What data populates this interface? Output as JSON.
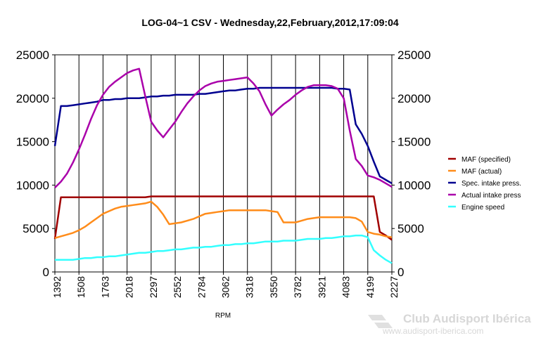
{
  "chart_data": {
    "type": "line",
    "title": "LOG-04~1 CSV - Wednesday,22,February,2012,17:09:04",
    "xlabel": "RPM",
    "ylabel": "",
    "ylim": [
      0,
      25000
    ],
    "y_ticks": [
      0,
      5000,
      10000,
      15000,
      20000,
      25000
    ],
    "grid": "vertical",
    "legend_position": "right",
    "categories": [
      "1392",
      "1508",
      "1763",
      "2018",
      "2297",
      "2552",
      "2784",
      "3062",
      "3318",
      "3550",
      "3782",
      "3921",
      "4083",
      "4199",
      "2227"
    ],
    "x": [
      0,
      0.25,
      0.5,
      0.75,
      1,
      1.25,
      1.5,
      1.75,
      2,
      2.25,
      2.5,
      2.75,
      3,
      3.25,
      3.5,
      3.75,
      4,
      4.25,
      4.5,
      4.75,
      5,
      5.25,
      5.5,
      5.75,
      6,
      6.25,
      6.5,
      6.75,
      7,
      7.25,
      7.5,
      7.75,
      8,
      8.25,
      8.5,
      8.75,
      9,
      9.25,
      9.5,
      9.75,
      10,
      10.25,
      10.5,
      10.75,
      11,
      11.25,
      11.5,
      11.75,
      12,
      12.25,
      12.5,
      12.75,
      13,
      13.25,
      13.5,
      13.75,
      14
    ],
    "series": [
      {
        "name": "MAF (specified)",
        "color": "#a00000",
        "values": [
          3800,
          8600,
          8600,
          8600,
          8600,
          8600,
          8600,
          8600,
          8600,
          8600,
          8600,
          8600,
          8600,
          8600,
          8600,
          8600,
          8700,
          8700,
          8700,
          8700,
          8700,
          8700,
          8700,
          8700,
          8700,
          8700,
          8700,
          8700,
          8700,
          8700,
          8700,
          8700,
          8700,
          8700,
          8700,
          8700,
          8700,
          8700,
          8700,
          8700,
          8700,
          8700,
          8700,
          8700,
          8700,
          8700,
          8700,
          8700,
          8700,
          8700,
          8700,
          8700,
          8700,
          8700,
          4600,
          4200,
          3700
        ]
      },
      {
        "name": "MAF (actual)",
        "color": "#ff8c1a",
        "values": [
          3900,
          4100,
          4300,
          4500,
          4800,
          5200,
          5700,
          6200,
          6700,
          7000,
          7300,
          7500,
          7600,
          7700,
          7800,
          7900,
          8100,
          7500,
          6600,
          5500,
          5600,
          5700,
          5900,
          6100,
          6400,
          6700,
          6800,
          6900,
          7000,
          7100,
          7100,
          7100,
          7100,
          7100,
          7100,
          7100,
          7000,
          6900,
          5700,
          5700,
          5700,
          5900,
          6100,
          6200,
          6300,
          6300,
          6300,
          6300,
          6300,
          6300,
          6200,
          5800,
          4600,
          4400,
          4300,
          4100,
          4000
        ]
      },
      {
        "name": "Spec. intake press.",
        "color": "#000090",
        "values": [
          14500,
          19100,
          19100,
          19200,
          19300,
          19400,
          19500,
          19600,
          19800,
          19800,
          19900,
          19900,
          20000,
          20000,
          20000,
          20100,
          20200,
          20200,
          20300,
          20300,
          20400,
          20400,
          20400,
          20400,
          20500,
          20500,
          20600,
          20700,
          20800,
          20900,
          20900,
          21000,
          21100,
          21100,
          21200,
          21200,
          21200,
          21200,
          21200,
          21200,
          21200,
          21200,
          21200,
          21200,
          21200,
          21200,
          21200,
          21100,
          21100,
          21000,
          17000,
          15900,
          14500,
          12700,
          11000,
          10600,
          10200
        ]
      },
      {
        "name": "Actual intake press",
        "color": "#aa00aa",
        "values": [
          9700,
          10400,
          11300,
          12600,
          14100,
          15800,
          17600,
          19200,
          20400,
          21300,
          21900,
          22400,
          22900,
          23200,
          23400,
          20300,
          17300,
          16300,
          15500,
          16400,
          17300,
          18400,
          19400,
          20200,
          20900,
          21400,
          21700,
          21900,
          22000,
          22100,
          22200,
          22300,
          22400,
          21700,
          20800,
          19300,
          18000,
          18700,
          19300,
          19800,
          20400,
          20900,
          21300,
          21500,
          21500,
          21500,
          21400,
          21100,
          20000,
          16300,
          13000,
          12200,
          11100,
          10900,
          10600,
          10200,
          9800
        ]
      },
      {
        "name": "Engine speed",
        "color": "#33ffff",
        "values": [
          1400,
          1400,
          1400,
          1400,
          1500,
          1600,
          1600,
          1700,
          1700,
          1800,
          1800,
          1900,
          2000,
          2100,
          2200,
          2200,
          2300,
          2400,
          2400,
          2500,
          2600,
          2600,
          2700,
          2800,
          2800,
          2900,
          2900,
          3000,
          3100,
          3100,
          3200,
          3200,
          3300,
          3300,
          3400,
          3500,
          3500,
          3500,
          3600,
          3600,
          3600,
          3700,
          3800,
          3800,
          3800,
          3900,
          3900,
          4000,
          4100,
          4100,
          4200,
          4200,
          4000,
          2500,
          1900,
          1400,
          1000
        ]
      }
    ]
  },
  "watermark": {
    "brand": "Club Audisport Ibérica",
    "url": "www.audisport-iberica.com"
  }
}
